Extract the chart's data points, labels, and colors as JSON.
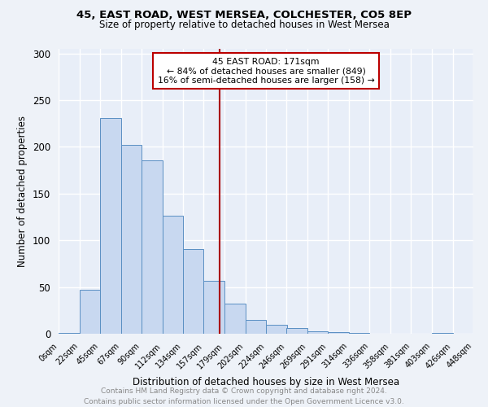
{
  "title1": "45, EAST ROAD, WEST MERSEA, COLCHESTER, CO5 8EP",
  "title2": "Size of property relative to detached houses in West Mersea",
  "xlabel": "Distribution of detached houses by size in West Mersea",
  "ylabel": "Number of detached properties",
  "bin_labels": [
    "0sqm",
    "22sqm",
    "45sqm",
    "67sqm",
    "90sqm",
    "112sqm",
    "134sqm",
    "157sqm",
    "179sqm",
    "202sqm",
    "224sqm",
    "246sqm",
    "269sqm",
    "291sqm",
    "314sqm",
    "336sqm",
    "358sqm",
    "381sqm",
    "403sqm",
    "426sqm",
    "448sqm"
  ],
  "bar_heights": [
    1,
    47,
    231,
    202,
    186,
    126,
    91,
    57,
    32,
    15,
    10,
    6,
    3,
    2,
    1,
    0,
    0,
    0,
    1
  ],
  "bar_color": "#c8d8f0",
  "bar_edge_color": "#5a8fc3",
  "vline_color": "#aa0000",
  "ylim": [
    0,
    305
  ],
  "yticks": [
    0,
    50,
    100,
    150,
    200,
    250,
    300
  ],
  "annotation_title": "45 EAST ROAD: 171sqm",
  "annotation_line1": "← 84% of detached houses are smaller (849)",
  "annotation_line2": "16% of semi-detached houses are larger (158) →",
  "annotation_box_color": "#ffffff",
  "annotation_box_edge": "#bb0000",
  "footer": "Contains HM Land Registry data © Crown copyright and database right 2024.\nContains public sector information licensed under the Open Government Licence v3.0.",
  "bg_color": "#e8eef8",
  "fig_bg_color": "#eef2f8",
  "grid_color": "#ffffff",
  "bin_width": 22
}
